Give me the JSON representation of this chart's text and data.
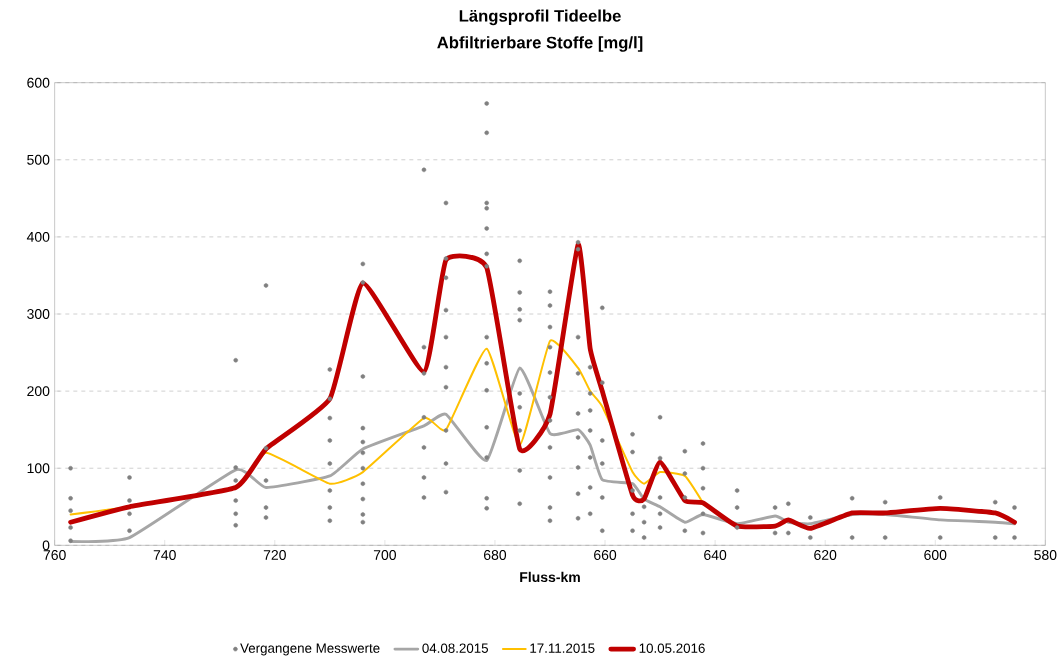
{
  "chart_data": {
    "type": "line",
    "title": "Längsprofil Tideelbe",
    "subtitle": "Abfiltrierbare Stoffe [mg/l]",
    "xlabel": "Fluss-km",
    "xlim": [
      760,
      580
    ],
    "xticks": [
      760,
      740,
      720,
      700,
      680,
      660,
      640,
      620,
      600,
      580
    ],
    "ylim": [
      0,
      600
    ],
    "yticks": [
      0,
      100,
      200,
      300,
      400,
      500,
      600
    ],
    "grid": "y",
    "legend": "bottom",
    "line_style": "solid",
    "series": [
      {
        "name": "Vergangene Messwerte",
        "type": "scatter",
        "color": "#808080",
        "x": [
          757.1,
          757.1,
          757.1,
          757.1,
          757.1,
          746.4,
          746.4,
          746.4,
          746.4,
          727.1,
          727.1,
          727.1,
          727.1,
          727.1,
          727.1,
          721.6,
          721.6,
          721.6,
          721.6,
          721.6,
          710,
          710,
          710,
          710,
          710,
          710,
          710,
          710,
          704,
          704,
          704,
          704,
          704,
          704,
          704,
          704,
          704,
          704,
          704,
          692.9,
          692.9,
          692.9,
          692.9,
          692.9,
          692.9,
          692.9,
          688.9,
          688.9,
          688.9,
          688.9,
          688.9,
          688.9,
          688.9,
          688.9,
          688.9,
          688.9,
          681.5,
          681.5,
          681.5,
          681.5,
          681.5,
          681.5,
          681.5,
          681.5,
          681.5,
          681.5,
          681.5,
          681.5,
          681.5,
          681.5,
          675.5,
          675.5,
          675.5,
          675.5,
          675.5,
          675.5,
          675.5,
          675.5,
          675.5,
          670,
          670,
          670,
          670,
          670,
          670,
          670,
          670,
          670,
          670,
          670,
          664.9,
          664.9,
          664.9,
          664.9,
          664.9,
          664.9,
          664.9,
          664.9,
          664.9,
          662.7,
          662.7,
          662.7,
          662.7,
          662.7,
          662.7,
          662.7,
          660.5,
          660.5,
          660.5,
          660.5,
          660.5,
          660.5,
          655,
          655,
          655,
          655,
          655,
          652.9,
          652.9,
          652.9,
          650,
          650,
          650,
          650,
          650,
          645.5,
          645.5,
          645.5,
          645.5,
          642.2,
          642.2,
          642.2,
          642.2,
          642.2,
          636,
          636,
          636,
          629.1,
          629.1,
          626.7,
          626.7,
          622.7,
          622.7,
          615.1,
          615.1,
          609.1,
          609.1,
          599.1,
          599.1,
          589.1,
          589.1,
          585.6,
          585.6
        ],
        "values": [
          100,
          61,
          45,
          23,
          6,
          88,
          58,
          41,
          19,
          240,
          101,
          84,
          58,
          41,
          26,
          337,
          126,
          84,
          49,
          36,
          228,
          190,
          165,
          136,
          106,
          71,
          49,
          32,
          365,
          341,
          219,
          152,
          134,
          120,
          100,
          80,
          60,
          40,
          30,
          487,
          257,
          223,
          166,
          127,
          88,
          62,
          444,
          372,
          347,
          305,
          270,
          231,
          205,
          149,
          106,
          69,
          573,
          535,
          444,
          437,
          411,
          378,
          362,
          270,
          236,
          201,
          153,
          114,
          61,
          48,
          369,
          328,
          306,
          292,
          197,
          179,
          149,
          97,
          54,
          329,
          311,
          283,
          257,
          224,
          192,
          162,
          127,
          88,
          49,
          32,
          393,
          384,
          270,
          223,
          171,
          140,
          101,
          67,
          35,
          231,
          197,
          175,
          149,
          114,
          75,
          41,
          308,
          211,
          136,
          106,
          62,
          19,
          144,
          121,
          71,
          41,
          19,
          50,
          30,
          10,
          166,
          113,
          62,
          41,
          23,
          122,
          93,
          62,
          19,
          132,
          100,
          74,
          41,
          16,
          71,
          49,
          23,
          49,
          16,
          54,
          16,
          36,
          10,
          61,
          10,
          56,
          10,
          62,
          10,
          56,
          10,
          49,
          10
        ]
      },
      {
        "name": "04.08.2015",
        "color": "#a6a6a6",
        "x": [
          757.1,
          746.4,
          727.1,
          721.6,
          710,
          704,
          692.9,
          688.9,
          681.5,
          675.5,
          670,
          664.9,
          662.7,
          660.5,
          655,
          652.9,
          650,
          645.5,
          642.2,
          636,
          629.1,
          626.7,
          622.7,
          615.1,
          609.1,
          599.1,
          589.1,
          585.6
        ],
        "values": [
          5,
          10,
          98,
          75,
          90,
          125,
          155,
          170,
          110,
          230,
          145,
          150,
          130,
          85,
          80,
          60,
          50,
          30,
          40,
          28,
          38,
          30,
          28,
          40,
          40,
          33,
          30,
          28
        ]
      },
      {
        "name": "17.11.2015",
        "color": "#ffc000",
        "x": [
          757.1,
          746.4,
          727.1,
          721.6,
          710,
          704,
          692.9,
          688.9,
          681.5,
          675.5,
          670,
          664.9,
          662.7,
          660.5,
          655,
          652.9,
          650,
          645.5,
          642.2
        ],
        "values": [
          40,
          50,
          75,
          120,
          80,
          95,
          165,
          150,
          255,
          130,
          265,
          230,
          200,
          180,
          95,
          80,
          95,
          90,
          55
        ]
      },
      {
        "name": "10.05.2016",
        "color": "#c00000",
        "x": [
          757.1,
          746.4,
          727.1,
          721.6,
          710,
          704,
          692.9,
          688.9,
          681.5,
          675.5,
          670,
          664.9,
          662.7,
          660.5,
          655,
          652.9,
          650,
          645.5,
          642.2,
          636,
          629.1,
          626.7,
          622.7,
          615.1,
          609.1,
          599.1,
          589.1,
          585.6
        ],
        "values": [
          30,
          50,
          75,
          125,
          190,
          340,
          225,
          370,
          360,
          125,
          170,
          390,
          255,
          200,
          65,
          60,
          108,
          58,
          55,
          25,
          25,
          33,
          22,
          42,
          42,
          48,
          42,
          30
        ]
      }
    ]
  }
}
